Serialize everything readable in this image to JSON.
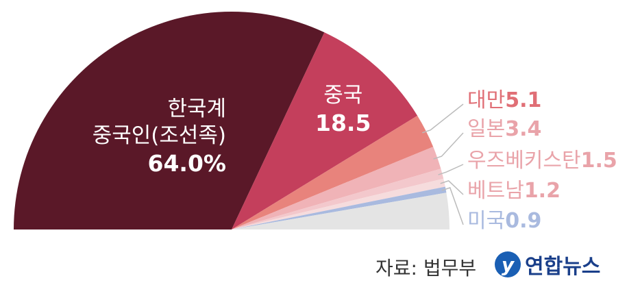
{
  "chart_data": {
    "type": "pie",
    "half": true,
    "categories": [
      "한국계\n중국인(조선족)",
      "중국",
      "대만",
      "일본",
      "우즈베키스탄",
      "베트남",
      "미국",
      null
    ],
    "values": [
      64.0,
      18.5,
      5.1,
      3.4,
      1.5,
      1.2,
      0.9,
      5.4
    ],
    "value_labels": [
      "64.0%",
      "18.5",
      "5.1",
      "3.4",
      "1.5",
      "1.2",
      "0.9",
      null
    ],
    "colors": [
      "#5a1828",
      "#c43f5c",
      "#e8837c",
      "#f0b3b7",
      "#f3c8cc",
      "#f6dcdd",
      "#a9badf",
      "#e4e4e4"
    ],
    "label_colors": [
      "#ffffff",
      "#ffffff",
      "#e06f76",
      "#e9a3a9",
      "#e9a3a9",
      "#e9a3a9",
      "#a9badf",
      null
    ]
  },
  "source": "자료: 법무부",
  "logo_text": "연합뉴스"
}
